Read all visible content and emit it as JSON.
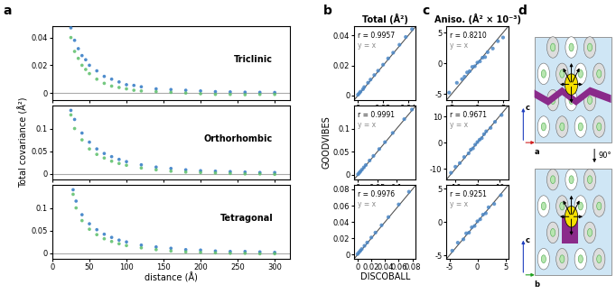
{
  "panel_labels": [
    "a",
    "b",
    "c",
    "d"
  ],
  "chart_data": [
    {
      "type": "scatter",
      "title": "Triclinic",
      "xlim": [
        0,
        320
      ],
      "xticks": [
        0,
        50,
        100,
        150,
        200,
        250,
        300
      ],
      "ylim": [
        -0.005,
        0.048
      ],
      "yticks": [
        0,
        0.02,
        0.04
      ],
      "reference_y": 0,
      "tick_labels": "y",
      "series": [
        {
          "color": "#2f78c4",
          "x": [
            25,
            30,
            35,
            40,
            45,
            50,
            60,
            70,
            80,
            90,
            100,
            110,
            120,
            140,
            160,
            180,
            200,
            220,
            240,
            260,
            280,
            300
          ],
          "values": [
            0.047,
            0.038,
            0.032,
            0.027,
            0.024,
            0.02,
            0.016,
            0.012,
            0.01,
            0.008,
            0.006,
            0.0055,
            0.0045,
            0.003,
            0.0025,
            0.002,
            0.0015,
            0.001,
            0.0008,
            0.0006,
            0.0005,
            0.0004
          ]
        },
        {
          "color": "#5cbf6a",
          "x": [
            25,
            30,
            35,
            40,
            45,
            50,
            60,
            70,
            80,
            90,
            100,
            110,
            120,
            140,
            160,
            180,
            200,
            220,
            240,
            260,
            280,
            300
          ],
          "values": [
            0.04,
            0.03,
            0.025,
            0.02,
            0.017,
            0.014,
            0.01,
            0.007,
            0.005,
            0.004,
            0.003,
            0.002,
            0.0015,
            0.001,
            0.0005,
            0.0,
            -0.0005,
            -0.001,
            -0.001,
            -0.0012,
            -0.001,
            -0.001
          ]
        }
      ]
    },
    {
      "type": "scatter",
      "title": "Orthorhombic",
      "y_label": "Total covariance (Å²)",
      "xlim": [
        0,
        320
      ],
      "xticks": [
        0,
        50,
        100,
        150,
        200,
        250,
        300
      ],
      "ylim": [
        -0.012,
        0.15
      ],
      "yticks": [
        0,
        0.05,
        0.1
      ],
      "reference_y": 0,
      "tick_labels": "y",
      "series": [
        {
          "color": "#2f78c4",
          "x": [
            25,
            30,
            40,
            50,
            60,
            70,
            80,
            90,
            100,
            120,
            140,
            160,
            180,
            200,
            220,
            240,
            260,
            280,
            300
          ],
          "values": [
            0.14,
            0.12,
            0.09,
            0.07,
            0.055,
            0.045,
            0.038,
            0.032,
            0.027,
            0.02,
            0.015,
            0.012,
            0.009,
            0.007,
            0.006,
            0.005,
            0.004,
            0.003,
            0.003
          ]
        },
        {
          "color": "#5cbf6a",
          "x": [
            25,
            30,
            40,
            50,
            60,
            70,
            80,
            90,
            100,
            120,
            140,
            160,
            180,
            200,
            220,
            240,
            260,
            280,
            300
          ],
          "values": [
            0.13,
            0.1,
            0.075,
            0.055,
            0.043,
            0.035,
            0.028,
            0.023,
            0.019,
            0.013,
            0.009,
            0.006,
            0.004,
            0.003,
            0.002,
            0.001,
            0.0,
            0.0,
            -0.001
          ]
        }
      ]
    },
    {
      "type": "scatter",
      "title": "Tetragonal",
      "x_label": "distance (Å)",
      "xlim": [
        0,
        320
      ],
      "xticks": [
        0,
        50,
        100,
        150,
        200,
        250,
        300
      ],
      "ylim": [
        -0.012,
        0.15
      ],
      "yticks": [
        0,
        0.05,
        0.1
      ],
      "reference_y": 0,
      "series": [
        {
          "color": "#2f78c4",
          "x": [
            28,
            32,
            40,
            50,
            60,
            70,
            80,
            90,
            100,
            120,
            140,
            160,
            180,
            200,
            220,
            240,
            260,
            280,
            300
          ],
          "values": [
            0.14,
            0.115,
            0.085,
            0.065,
            0.052,
            0.042,
            0.035,
            0.029,
            0.025,
            0.018,
            0.014,
            0.011,
            0.008,
            0.007,
            0.005,
            0.004,
            0.004,
            0.003,
            0.002
          ]
        },
        {
          "color": "#5cbf6a",
          "x": [
            28,
            32,
            40,
            50,
            60,
            70,
            80,
            90,
            100,
            120,
            140,
            160,
            180,
            200,
            220,
            240,
            260,
            280,
            300
          ],
          "values": [
            0.13,
            0.1,
            0.072,
            0.053,
            0.041,
            0.032,
            0.026,
            0.021,
            0.017,
            0.012,
            0.008,
            0.005,
            0.003,
            0.002,
            0.001,
            0.0,
            0.0,
            -0.001,
            -0.001
          ]
        }
      ]
    },
    {
      "type": "scatter",
      "title": "Total (Å²)",
      "xlim": [
        -0.003,
        0.046
      ],
      "xticks": [
        0,
        0.02,
        0.04
      ],
      "ylim": [
        -0.003,
        0.046
      ],
      "yticks": [
        0,
        0.02,
        0.04
      ],
      "annotations": [
        "r = 0.9957",
        "y = x"
      ],
      "series": [
        {
          "color": "#4a86c5",
          "x": [
            0,
            0.001,
            0.002,
            0.004,
            0.005,
            0.008,
            0.01,
            0.013,
            0.016,
            0.02,
            0.024,
            0.028,
            0.033,
            0.038,
            0.043
          ],
          "values": [
            0.0005,
            0.0015,
            0.0025,
            0.0042,
            0.0056,
            0.0085,
            0.0106,
            0.0136,
            0.0165,
            0.0205,
            0.0247,
            0.0285,
            0.0338,
            0.039,
            0.0442
          ]
        }
      ]
    },
    {
      "type": "scatter",
      "y_label": "GOODVIBES",
      "xlim": [
        -0.01,
        0.15
      ],
      "xticks": [
        0,
        0.05,
        0.1
      ],
      "ylim": [
        -0.01,
        0.15
      ],
      "yticks": [
        0,
        0.05,
        0.1
      ],
      "annotations": [
        "r = 0.9991",
        "y = x"
      ],
      "series": [
        {
          "color": "#4a86c5",
          "x": [
            0,
            0.003,
            0.006,
            0.01,
            0.015,
            0.02,
            0.03,
            0.04,
            0.055,
            0.07,
            0.09,
            0.12,
            0.14
          ],
          "values": [
            0.001,
            0.004,
            0.007,
            0.011,
            0.016,
            0.021,
            0.031,
            0.041,
            0.056,
            0.071,
            0.091,
            0.121,
            0.142
          ]
        }
      ]
    },
    {
      "type": "scatter",
      "x_label": "DISCOBALL",
      "xlim": [
        -0.005,
        0.085
      ],
      "xticks": [
        0,
        0.02,
        0.04,
        0.06,
        0.08
      ],
      "ylim": [
        -0.005,
        0.085
      ],
      "yticks": [
        0,
        0.02,
        0.04,
        0.06,
        0.08
      ],
      "annotations": [
        "r = 0.9976",
        "y = x"
      ],
      "series": [
        {
          "color": "#4a86c5",
          "x": [
            0,
            0.002,
            0.004,
            0.006,
            0.01,
            0.014,
            0.02,
            0.026,
            0.035,
            0.045,
            0.06,
            0.075
          ],
          "values": [
            0.0008,
            0.0028,
            0.0048,
            0.0068,
            0.0108,
            0.0148,
            0.021,
            0.027,
            0.036,
            0.046,
            0.0615,
            0.077
          ]
        }
      ]
    },
    {
      "type": "scatter",
      "title": "Aniso. (Å² × 10⁻³)",
      "xlim": [
        -6,
        6
      ],
      "xticks": [
        -5,
        0,
        5
      ],
      "ylim": [
        -6,
        6
      ],
      "yticks": [
        -5,
        0,
        5
      ],
      "annotations": [
        "r = 0.8210",
        "y = x"
      ],
      "series": [
        {
          "color": "#4a86c5",
          "x": [
            -5.5,
            -4,
            -3,
            -2.5,
            -2,
            -1.5,
            -1,
            -0.5,
            0,
            0.5,
            1,
            1.5,
            2,
            3,
            4,
            5
          ],
          "values": [
            -4.8,
            -3.2,
            -2.6,
            -2.2,
            -1.5,
            -1.3,
            -0.6,
            -0.5,
            0.1,
            0.3,
            0.9,
            1.0,
            1.8,
            2.4,
            3.6,
            4.2
          ]
        }
      ]
    },
    {
      "type": "scatter",
      "xlim": [
        -14,
        14
      ],
      "xticks": [
        -10,
        0,
        10
      ],
      "ylim": [
        -14,
        14
      ],
      "yticks": [
        -10,
        0,
        10
      ],
      "annotations": [
        "r = 0.9671",
        "y = x"
      ],
      "series": [
        {
          "color": "#4a86c5",
          "x": [
            -12,
            -10,
            -8,
            -6,
            -4,
            -3,
            -2,
            -1,
            0,
            1,
            2,
            3,
            4,
            6,
            8,
            11
          ],
          "values": [
            -11.5,
            -9.2,
            -7.8,
            -5.5,
            -4.1,
            -2.7,
            -2.2,
            -0.8,
            0.2,
            1.1,
            1.7,
            3.2,
            4.3,
            5.6,
            7.9,
            10.5
          ]
        }
      ]
    },
    {
      "type": "scatter",
      "xlim": [
        -5.5,
        5.5
      ],
      "xticks": [
        -5,
        0,
        5
      ],
      "ylim": [
        -5.5,
        5.5
      ],
      "yticks": [
        -5,
        0,
        5
      ],
      "annotations": [
        "r = 0.9251",
        "y = x"
      ],
      "series": [
        {
          "color": "#4a86c5",
          "x": [
            -4.5,
            -3.5,
            -2.5,
            -2,
            -1.5,
            -1,
            -0.5,
            0,
            0.5,
            1,
            1.5,
            2,
            3,
            4.2
          ],
          "values": [
            -4.3,
            -3.1,
            -2.6,
            -1.7,
            -1.6,
            -0.8,
            -0.6,
            0.1,
            0.4,
            1.1,
            1.3,
            2.2,
            2.7,
            4.0
          ]
        }
      ]
    }
  ],
  "diagram": {
    "top_axes": [
      "c",
      "a"
    ],
    "bottom_axes": [
      "c",
      "b"
    ],
    "rotation": "90°"
  }
}
